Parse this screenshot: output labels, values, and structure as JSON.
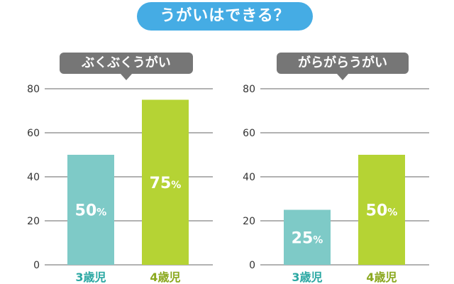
{
  "title": "うがいはできる？",
  "colors": {
    "title_bg": "#45ace4",
    "label_bg": "#767676",
    "bar_3yo": "#7ecac7",
    "bar_4yo": "#b5d334",
    "cat_3yo": "#2ba8a3",
    "cat_4yo": "#8aa81e",
    "grid": "#666666"
  },
  "chart_data": [
    {
      "type": "bar",
      "title": "ぶくぶくうがい",
      "categories": [
        "3歳児",
        "4歳児"
      ],
      "values": [
        50,
        75
      ],
      "value_labels": [
        "50",
        "75"
      ],
      "unit": "%",
      "yticks": [
        "0",
        "20",
        "40",
        "60",
        "80"
      ],
      "ylim": [
        0,
        80
      ],
      "grid": true
    },
    {
      "type": "bar",
      "title": "がらがらうがい",
      "categories": [
        "3歳児",
        "4歳児"
      ],
      "values": [
        25,
        50
      ],
      "value_labels": [
        "25",
        "50"
      ],
      "unit": "%",
      "yticks": [
        "0",
        "20",
        "40",
        "60",
        "80"
      ],
      "ylim": [
        0,
        80
      ],
      "grid": true
    }
  ]
}
